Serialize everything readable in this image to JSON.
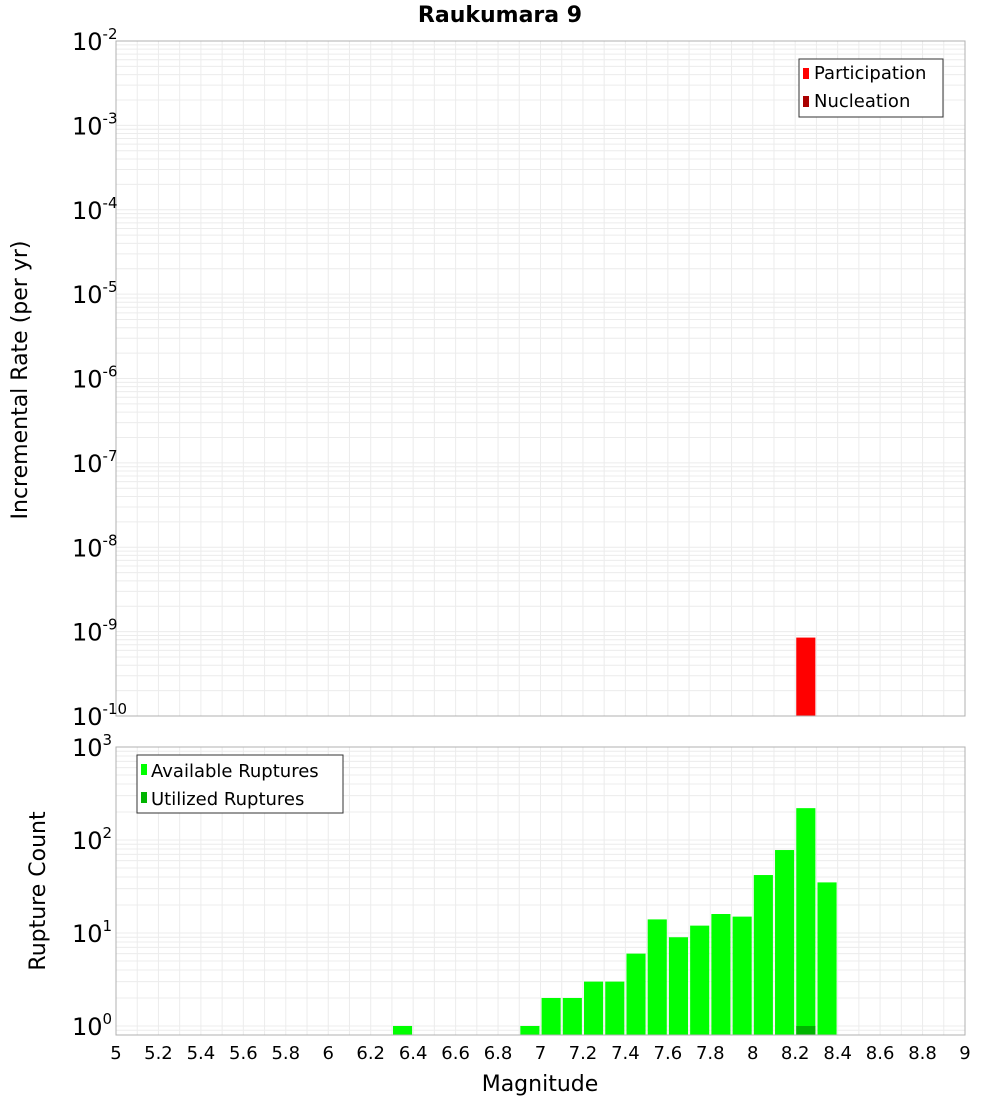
{
  "colors": {
    "participation": "#ff0000",
    "nucleation": "#aa0000",
    "available": "#00ff00",
    "utilized": "#00b400",
    "grid": "#ececec",
    "frame": "#b0b0b0"
  },
  "chart_data": [
    {
      "type": "bar",
      "title": "Raukumara 9",
      "xlabel": "",
      "ylabel": "Incremental Rate (per yr)",
      "yscale": "log",
      "ylim": [
        1e-10,
        0.01
      ],
      "xlim": [
        5,
        9
      ],
      "ytick_labels": [
        {
          "base": "10",
          "exp": "-2"
        },
        {
          "base": "10",
          "exp": "-3"
        },
        {
          "base": "10",
          "exp": "-4"
        },
        {
          "base": "10",
          "exp": "-5"
        },
        {
          "base": "10",
          "exp": "-6"
        },
        {
          "base": "10",
          "exp": "-7"
        },
        {
          "base": "10",
          "exp": "-8"
        },
        {
          "base": "10",
          "exp": "-9"
        },
        {
          "base": "10",
          "exp": "-10"
        }
      ],
      "legend": [
        "Participation",
        "Nucleation"
      ],
      "legend_position": "top-right",
      "series": [
        {
          "name": "Participation",
          "x": [
            8.25
          ],
          "values": [
            8.5e-10
          ]
        },
        {
          "name": "Nucleation",
          "x": [],
          "values": []
        }
      ],
      "grid": true
    },
    {
      "type": "bar",
      "xlabel": "Magnitude",
      "ylabel": "Rupture Count",
      "yscale": "log",
      "ylim": [
        0.8,
        1000
      ],
      "xlim": [
        5,
        9
      ],
      "ytick_labels": [
        {
          "base": "10",
          "exp": "3"
        },
        {
          "base": "10",
          "exp": "2"
        },
        {
          "base": "10",
          "exp": "1"
        },
        {
          "base": "10",
          "exp": "0"
        }
      ],
      "xtick_labels": [
        "5",
        "5.2",
        "5.4",
        "5.6",
        "5.8",
        "6",
        "6.2",
        "6.4",
        "6.6",
        "6.8",
        "7",
        "7.2",
        "7.4",
        "7.6",
        "7.8",
        "8",
        "8.2",
        "8.4",
        "8.6",
        "8.8",
        "9"
      ],
      "legend": [
        "Available Ruptures",
        "Utilized Ruptures"
      ],
      "legend_position": "top-left",
      "series": [
        {
          "name": "Available Ruptures",
          "x": [
            6.35,
            6.95,
            7.05,
            7.15,
            7.25,
            7.35,
            7.45,
            7.55,
            7.65,
            7.75,
            7.85,
            7.95,
            8.05,
            8.15,
            8.25,
            8.35
          ],
          "values": [
            1,
            1,
            2,
            2,
            3,
            3,
            6,
            14,
            9,
            12,
            16,
            15,
            42,
            78,
            220,
            35
          ]
        },
        {
          "name": "Utilized Ruptures",
          "x": [
            8.25
          ],
          "values": [
            1
          ]
        }
      ],
      "grid": true
    }
  ]
}
